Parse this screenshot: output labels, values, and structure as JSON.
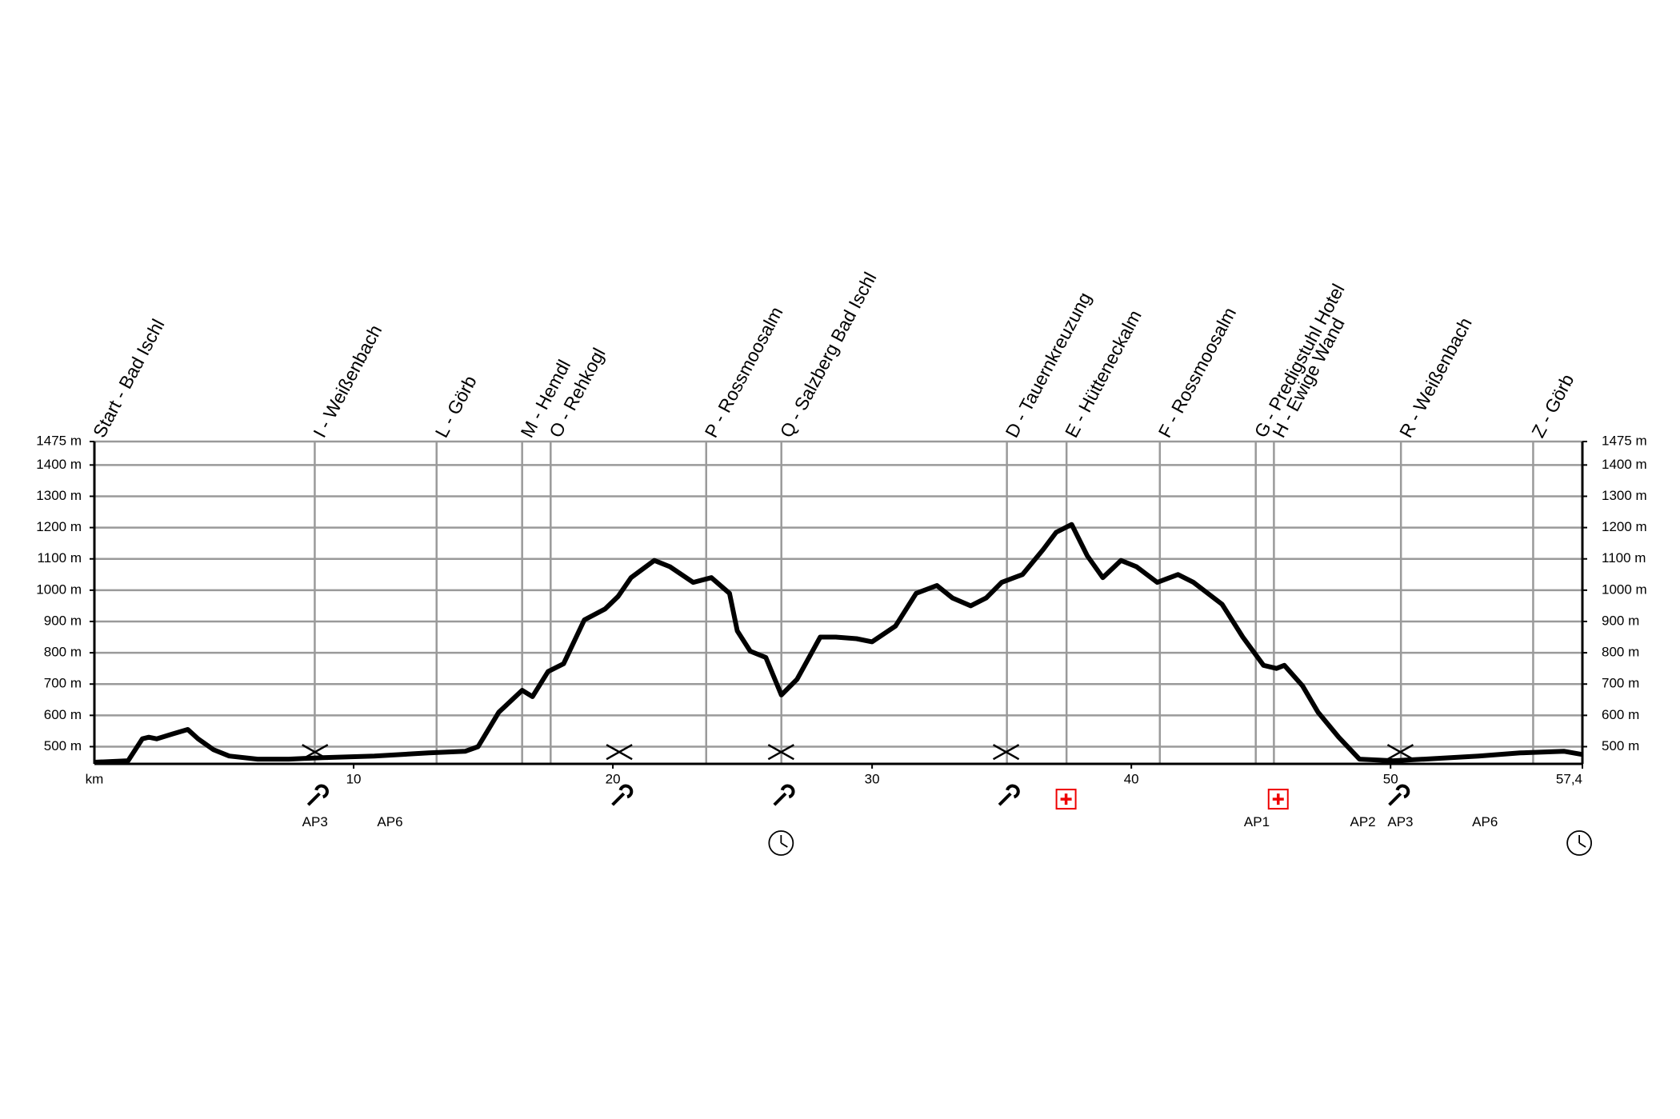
{
  "chart_data": {
    "type": "line",
    "x_label": "km",
    "xlim": [
      0,
      57.4
    ],
    "xticks": [
      10,
      20,
      30,
      40,
      50,
      {
        "value": 57.4,
        "label": "57,4"
      }
    ],
    "ylim": [
      445,
      1475
    ],
    "yticks": [
      {
        "value": 500,
        "label": "500 m"
      },
      {
        "value": 600,
        "label": "600 m"
      },
      {
        "value": 700,
        "label": "700 m"
      },
      {
        "value": 800,
        "label": "800 m"
      },
      {
        "value": 900,
        "label": "900 m"
      },
      {
        "value": 1000,
        "label": "1000 m"
      },
      {
        "value": 1100,
        "label": "1100 m"
      },
      {
        "value": 1200,
        "label": "1200 m"
      },
      {
        "value": 1300,
        "label": "1300 m"
      },
      {
        "value": 1400,
        "label": "1400 m"
      },
      {
        "value": 1475,
        "label": "1475 m"
      }
    ],
    "grid": true,
    "series": [
      {
        "name": null,
        "color": "#000000",
        "x": [
          0,
          1.3,
          1.85,
          2.1,
          2.4,
          3.0,
          3.6,
          4.0,
          4.6,
          5.2,
          6.3,
          7.5,
          8.8,
          10.8,
          12.9,
          14.3,
          14.8,
          15.6,
          16.5,
          16.9,
          17.5,
          18.1,
          18.9,
          19.7,
          20.2,
          20.7,
          21.6,
          22.2,
          23.1,
          23.8,
          24.5,
          24.8,
          25.3,
          25.9,
          26.5,
          27.1,
          28.0,
          28.6,
          29.4,
          30.0,
          30.9,
          31.7,
          32.5,
          33.1,
          33.8,
          34.4,
          35.0,
          35.8,
          36.6,
          37.1,
          37.7,
          38.3,
          38.9,
          39.6,
          40.2,
          41.0,
          41.8,
          42.4,
          43.5,
          44.3,
          45.1,
          45.6,
          45.9,
          46.6,
          47.2,
          48.0,
          48.8,
          50.1,
          51.3,
          53.4,
          55.0,
          56.7,
          57.4
        ],
        "values": [
          450,
          455,
          525,
          530,
          525,
          540,
          555,
          525,
          490,
          470,
          460,
          460,
          465,
          470,
          480,
          485,
          500,
          610,
          680,
          660,
          740,
          765,
          905,
          940,
          980,
          1040,
          1095,
          1075,
          1025,
          1040,
          990,
          870,
          805,
          785,
          665,
          715,
          850,
          850,
          845,
          835,
          885,
          990,
          1015,
          975,
          950,
          975,
          1025,
          1050,
          1130,
          1185,
          1210,
          1110,
          1040,
          1095,
          1075,
          1025,
          1050,
          1025,
          955,
          850,
          760,
          750,
          760,
          695,
          610,
          530,
          460,
          455,
          460,
          470,
          480,
          485,
          475
        ]
      }
    ],
    "waypoints": {
      "x": [
        0,
        8.5,
        13.2,
        16.5,
        17.6,
        23.6,
        26.5,
        35.2,
        37.5,
        41.1,
        44.8,
        45.5,
        50.4,
        55.5
      ],
      "labels": [
        "Start - Bad Ischl",
        "I - Weißenbach",
        "L - Görb",
        "M - Hemdl",
        "O - Rehkogl",
        "P - Rossmoosalm",
        "Q - Salzberg Bad Ischl",
        "D - Tauernkreuzung",
        "E - Hütteneckalm",
        "F - Rossmoosalm",
        "G - Predigstuhl Hotel",
        "H - Ewige Wand",
        "R - Weißenbach",
        "Z - Görb"
      ]
    },
    "aid_stations": [
      "AP3",
      "AP6",
      "AP1",
      "AP2",
      "AP3",
      "AP6"
    ]
  }
}
